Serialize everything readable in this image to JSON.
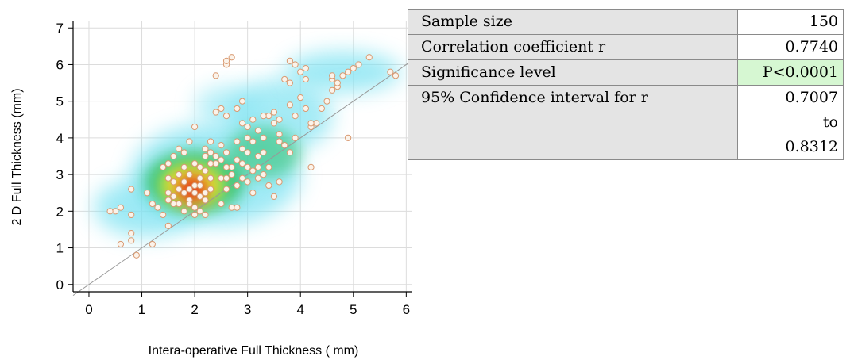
{
  "chart_data": {
    "type": "scatter",
    "xlabel": "Intera-operative Full Thickness ( mm)",
    "ylabel": "2 D Full Thickness (mm)",
    "xlim": [
      -0.3,
      6.1
    ],
    "ylim": [
      -0.2,
      7.2
    ],
    "xticks": [
      "0",
      "1",
      "2",
      "3",
      "4",
      "5",
      "6"
    ],
    "yticks": [
      "0",
      "1",
      "2",
      "3",
      "4",
      "5",
      "6",
      "7"
    ],
    "grid": true,
    "identity_line": true,
    "density_overlay": true,
    "points": [
      [
        0.9,
        0.8
      ],
      [
        1.2,
        1.1
      ],
      [
        0.6,
        1.1
      ],
      [
        0.8,
        1.2
      ],
      [
        0.8,
        1.4
      ],
      [
        0.8,
        1.9
      ],
      [
        0.5,
        2.0
      ],
      [
        0.4,
        2.0
      ],
      [
        0.6,
        2.1
      ],
      [
        0.8,
        2.6
      ],
      [
        1.1,
        2.5
      ],
      [
        1.2,
        2.2
      ],
      [
        1.3,
        2.1
      ],
      [
        1.4,
        1.9
      ],
      [
        1.5,
        1.6
      ],
      [
        1.5,
        2.3
      ],
      [
        1.6,
        2.8
      ],
      [
        1.6,
        2.4
      ],
      [
        1.7,
        2.2
      ],
      [
        1.5,
        2.9
      ],
      [
        1.4,
        3.2
      ],
      [
        1.5,
        3.3
      ],
      [
        1.7,
        3.0
      ],
      [
        1.8,
        3.2
      ],
      [
        1.8,
        3.6
      ],
      [
        1.9,
        3.0
      ],
      [
        1.9,
        2.6
      ],
      [
        1.8,
        2.5
      ],
      [
        1.9,
        2.3
      ],
      [
        2.0,
        2.7
      ],
      [
        2.0,
        2.1
      ],
      [
        2.0,
        1.9
      ],
      [
        2.1,
        2.0
      ],
      [
        2.2,
        1.9
      ],
      [
        2.1,
        2.4
      ],
      [
        2.2,
        2.3
      ],
      [
        2.3,
        2.6
      ],
      [
        2.1,
        2.9
      ],
      [
        2.2,
        3.1
      ],
      [
        2.3,
        3.3
      ],
      [
        2.2,
        3.7
      ],
      [
        2.4,
        3.5
      ],
      [
        2.3,
        3.9
      ],
      [
        2.5,
        3.8
      ],
      [
        2.6,
        3.6
      ],
      [
        2.6,
        3.2
      ],
      [
        2.5,
        2.9
      ],
      [
        2.6,
        2.6
      ],
      [
        2.7,
        2.1
      ],
      [
        2.8,
        2.1
      ],
      [
        2.8,
        2.7
      ],
      [
        2.7,
        3.0
      ],
      [
        2.8,
        3.4
      ],
      [
        2.9,
        3.3
      ],
      [
        2.9,
        3.7
      ],
      [
        3.0,
        3.2
      ],
      [
        3.0,
        2.8
      ],
      [
        3.1,
        2.5
      ],
      [
        3.1,
        3.1
      ],
      [
        3.2,
        3.5
      ],
      [
        3.1,
        3.9
      ],
      [
        3.0,
        4.0
      ],
      [
        3.0,
        4.3
      ],
      [
        3.1,
        4.5
      ],
      [
        3.2,
        4.2
      ],
      [
        3.3,
        4.0
      ],
      [
        3.3,
        3.6
      ],
      [
        3.4,
        3.2
      ],
      [
        3.4,
        2.7
      ],
      [
        3.5,
        2.4
      ],
      [
        3.6,
        2.8
      ],
      [
        3.5,
        4.4
      ],
      [
        3.4,
        4.6
      ],
      [
        3.6,
        4.5
      ],
      [
        3.6,
        4.1
      ],
      [
        3.7,
        3.8
      ],
      [
        3.8,
        3.6
      ],
      [
        3.9,
        4.0
      ],
      [
        3.9,
        4.6
      ],
      [
        3.8,
        4.9
      ],
      [
        4.0,
        5.1
      ],
      [
        4.1,
        4.8
      ],
      [
        4.2,
        4.3
      ],
      [
        4.3,
        4.4
      ],
      [
        4.2,
        3.2
      ],
      [
        4.5,
        5.0
      ],
      [
        4.4,
        4.8
      ],
      [
        4.6,
        5.6
      ],
      [
        4.6,
        5.7
      ],
      [
        4.7,
        5.4
      ],
      [
        4.8,
        5.7
      ],
      [
        4.9,
        5.8
      ],
      [
        5.0,
        5.9
      ],
      [
        5.1,
        6.0
      ],
      [
        5.3,
        6.2
      ],
      [
        5.7,
        5.8
      ],
      [
        5.8,
        5.7
      ],
      [
        4.9,
        4.0
      ],
      [
        3.8,
        6.1
      ],
      [
        3.9,
        6.0
      ],
      [
        4.1,
        5.9
      ],
      [
        4.0,
        5.8
      ],
      [
        4.1,
        5.6
      ],
      [
        3.7,
        5.6
      ],
      [
        3.8,
        5.5
      ],
      [
        2.6,
        6.0
      ],
      [
        2.6,
        6.1
      ],
      [
        2.7,
        6.2
      ],
      [
        2.4,
        5.7
      ],
      [
        2.4,
        4.7
      ],
      [
        2.5,
        4.8
      ],
      [
        2.6,
        4.6
      ],
      [
        2.8,
        4.8
      ],
      [
        2.9,
        5.0
      ],
      [
        2.0,
        4.3
      ],
      [
        1.6,
        3.5
      ],
      [
        1.7,
        3.7
      ],
      [
        1.8,
        2.0
      ],
      [
        2.0,
        2.5
      ],
      [
        2.1,
        2.7
      ],
      [
        1.9,
        2.2
      ],
      [
        2.2,
        2.5
      ],
      [
        1.7,
        2.6
      ],
      [
        2.3,
        2.9
      ],
      [
        2.4,
        3.3
      ],
      [
        2.0,
        3.3
      ],
      [
        2.2,
        3.5
      ],
      [
        2.7,
        3.2
      ],
      [
        2.9,
        2.9
      ],
      [
        3.2,
        2.9
      ],
      [
        3.2,
        3.2
      ],
      [
        2.5,
        2.2
      ],
      [
        2.9,
        4.4
      ],
      [
        3.3,
        4.6
      ],
      [
        3.5,
        4.7
      ],
      [
        3.0,
        3.6
      ],
      [
        1.5,
        2.5
      ],
      [
        1.6,
        2.2
      ],
      [
        1.8,
        2.8
      ],
      [
        2.1,
        3.2
      ],
      [
        2.3,
        3.6
      ],
      [
        2.5,
        3.4
      ],
      [
        2.6,
        2.9
      ],
      [
        3.3,
        3.0
      ],
      [
        1.9,
        3.9
      ],
      [
        2.8,
        3.9
      ],
      [
        4.6,
        5.3
      ],
      [
        4.7,
        5.5
      ],
      [
        4.2,
        4.4
      ],
      [
        3.6,
        3.9
      ]
    ]
  },
  "table": {
    "rows": [
      {
        "label": "Sample size",
        "value": "150"
      },
      {
        "label": "Correlation coefficient r",
        "value": "0.7740"
      },
      {
        "label": "Significance level",
        "value": "P<0.0001"
      },
      {
        "label": "95% Confidence interval for r",
        "value_lines": [
          "0.7007",
          "to",
          "0.8312"
        ]
      }
    ]
  },
  "colors": {
    "point_fill": "#fbf3ea",
    "point_stroke": "#d99a72",
    "grid": "#dcdcdc",
    "highlight_cell": "#d6f7d2",
    "label_cell": "#e4e4e4",
    "density_low": "#7fe3f2",
    "density_mid": "#2ec06a",
    "density_high": "#f2ec2a",
    "density_peak": "#e62b1c"
  }
}
